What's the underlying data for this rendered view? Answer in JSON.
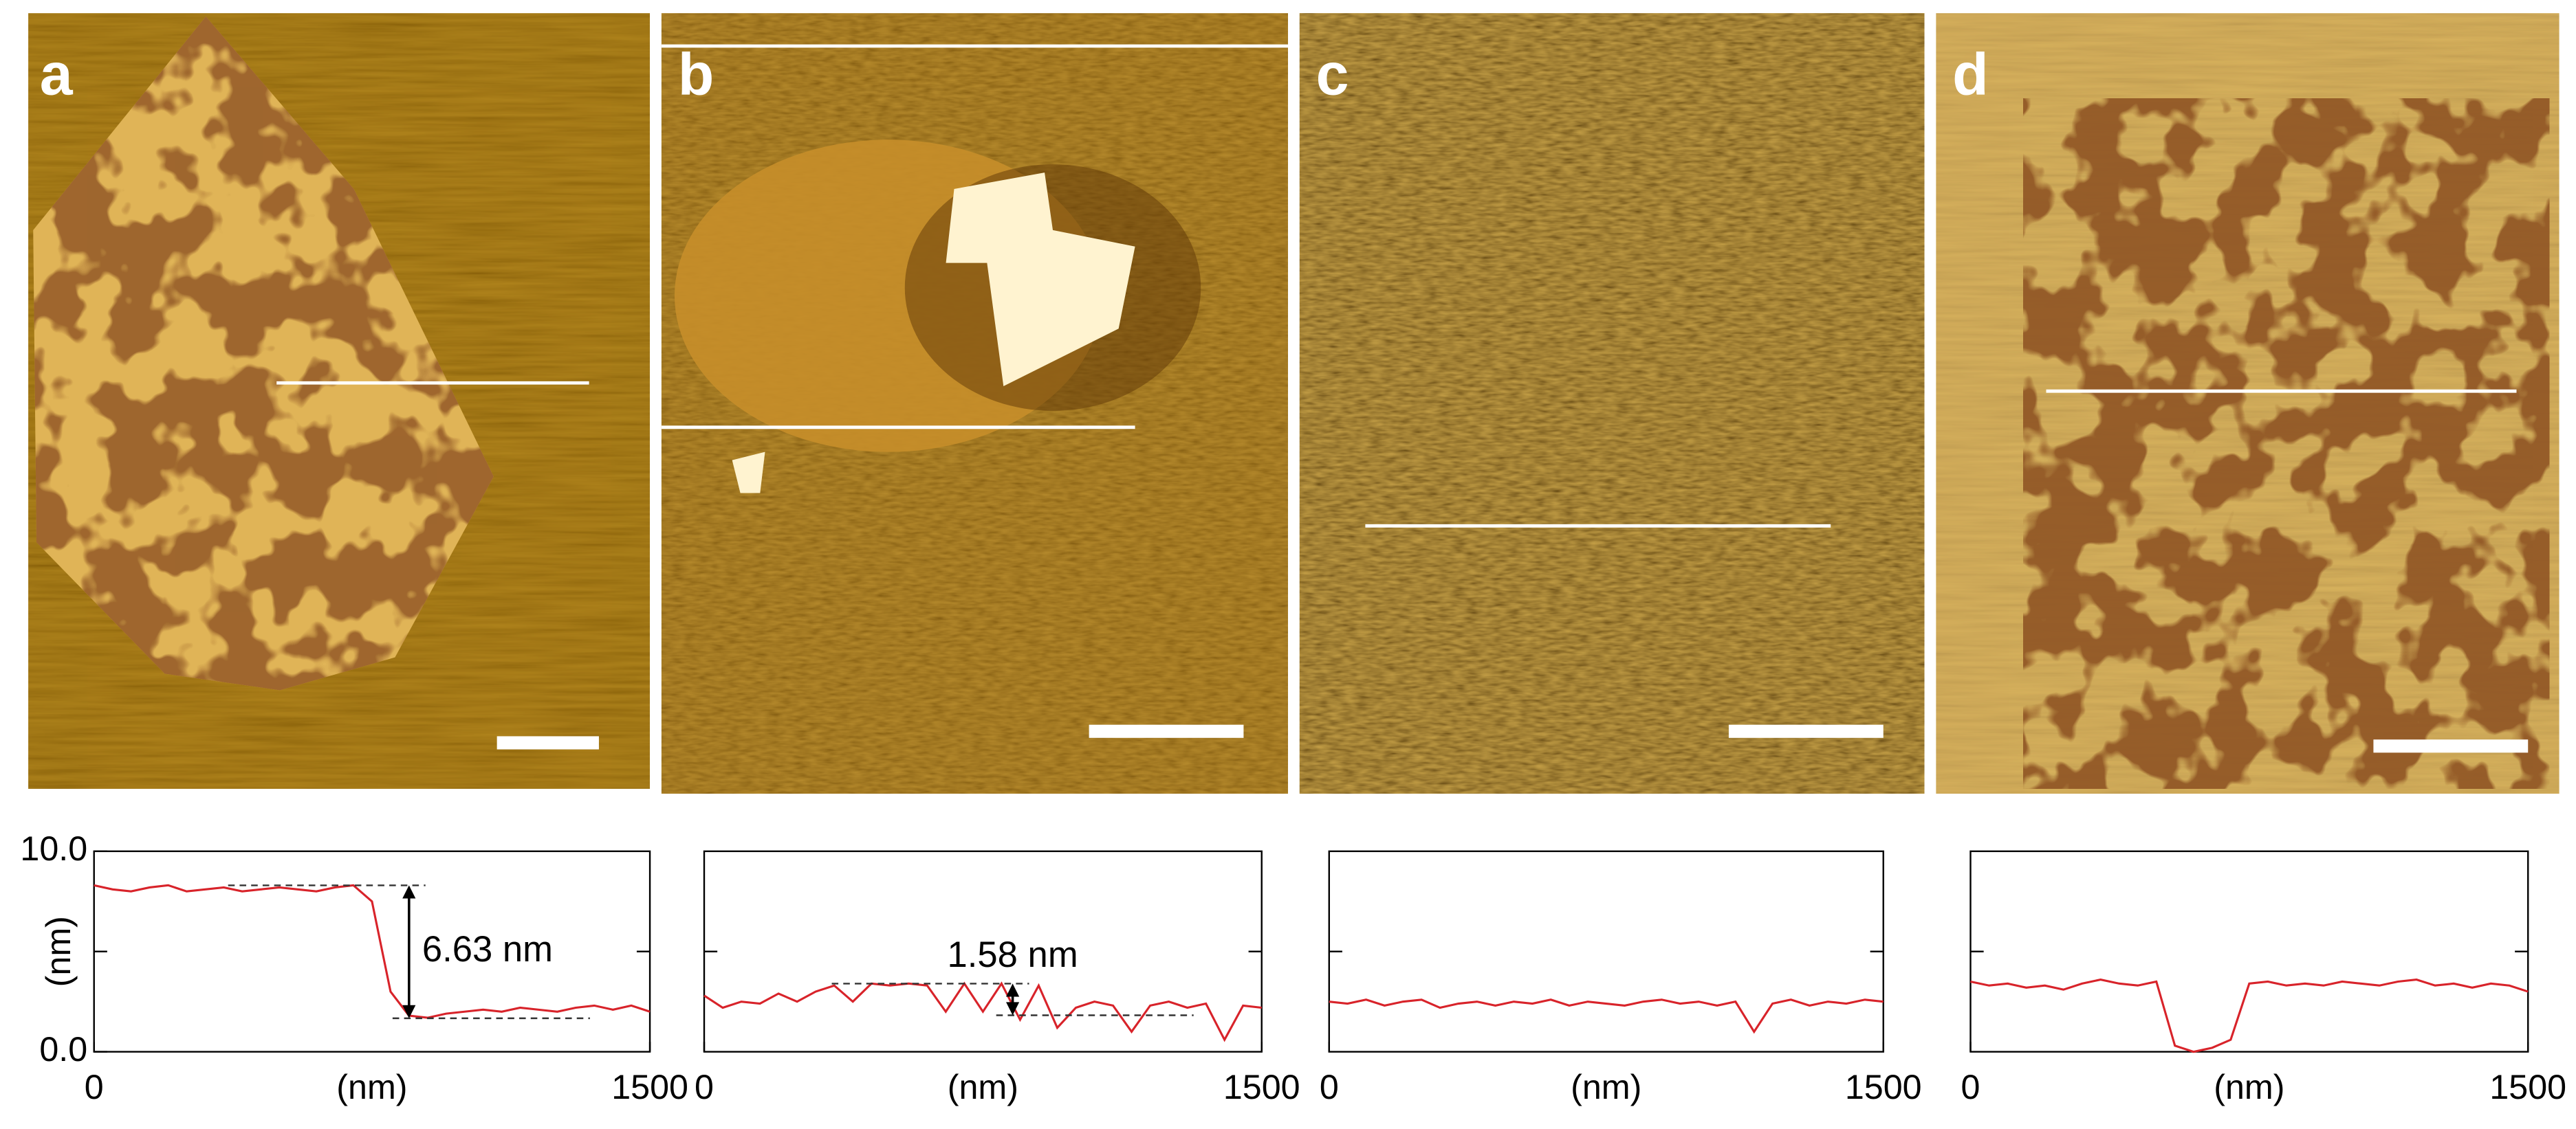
{
  "chart_data": [
    {
      "type": "line",
      "panel": "a",
      "xlabel": "(nm)",
      "ylabel": "(nm)",
      "color": "#d8232a",
      "x": [
        0,
        50,
        100,
        150,
        200,
        250,
        300,
        350,
        400,
        450,
        500,
        550,
        600,
        650,
        700,
        750,
        800,
        850,
        900,
        950,
        1000,
        1050,
        1100,
        1150,
        1200,
        1250,
        1300,
        1350,
        1400,
        1450,
        1500
      ],
      "values": [
        8.3,
        8.1,
        8.0,
        8.2,
        8.3,
        8.0,
        8.1,
        8.2,
        8.0,
        8.1,
        8.2,
        8.1,
        8.0,
        8.2,
        8.3,
        7.5,
        3.0,
        1.8,
        1.7,
        1.9,
        2.0,
        2.1,
        2.0,
        2.2,
        2.1,
        2.0,
        2.2,
        2.3,
        2.1,
        2.3,
        2.0
      ],
      "xlim": [
        0,
        1500
      ],
      "xticks": [
        0,
        1500
      ],
      "ylim": [
        0,
        10
      ],
      "yticks": [
        {
          "value": 0,
          "label": "0.0"
        },
        {
          "value": 10,
          "label": "10.0"
        }
      ],
      "yminorticks": [
        5
      ],
      "annotation": {
        "label": "6.63 nm",
        "x": 850,
        "from": 8.3,
        "to": 1.67
      }
    },
    {
      "type": "line",
      "panel": "b",
      "xlabel": "(nm)",
      "color": "#d8232a",
      "x": [
        0,
        50,
        100,
        150,
        200,
        250,
        300,
        350,
        400,
        450,
        500,
        550,
        600,
        650,
        700,
        750,
        800,
        850,
        900,
        950,
        1000,
        1050,
        1100,
        1150,
        1200,
        1250,
        1300,
        1350,
        1400,
        1450,
        1500
      ],
      "values": [
        2.8,
        2.2,
        2.5,
        2.4,
        2.9,
        2.5,
        3.0,
        3.3,
        2.5,
        3.4,
        3.3,
        3.4,
        3.3,
        2.0,
        3.4,
        2.0,
        3.4,
        1.6,
        3.3,
        1.2,
        2.2,
        2.5,
        2.3,
        1.0,
        2.3,
        2.5,
        2.2,
        2.4,
        0.6,
        2.3,
        2.2
      ],
      "xlim": [
        0,
        1500
      ],
      "xticks": [
        0,
        1500
      ],
      "ylim": [
        0,
        10
      ],
      "yminorticks": [
        5
      ],
      "annotation": {
        "label": "1.58 nm",
        "x": 830,
        "from": 3.4,
        "to": 1.82
      }
    },
    {
      "type": "line",
      "panel": "c",
      "xlabel": "(nm)",
      "color": "#d8232a",
      "x": [
        0,
        50,
        100,
        150,
        200,
        250,
        300,
        350,
        400,
        450,
        500,
        550,
        600,
        650,
        700,
        750,
        800,
        850,
        900,
        950,
        1000,
        1050,
        1100,
        1150,
        1200,
        1250,
        1300,
        1350,
        1400,
        1450,
        1500
      ],
      "values": [
        2.5,
        2.4,
        2.6,
        2.3,
        2.5,
        2.6,
        2.2,
        2.4,
        2.5,
        2.3,
        2.5,
        2.4,
        2.6,
        2.3,
        2.5,
        2.4,
        2.3,
        2.5,
        2.6,
        2.4,
        2.5,
        2.3,
        2.5,
        1.0,
        2.4,
        2.6,
        2.3,
        2.5,
        2.4,
        2.6,
        2.5
      ],
      "xlim": [
        0,
        1500
      ],
      "xticks": [
        0,
        1500
      ],
      "ylim": [
        0,
        10
      ],
      "yminorticks": [
        5
      ]
    },
    {
      "type": "line",
      "panel": "d",
      "xlabel": "(nm)",
      "color": "#d8232a",
      "x": [
        0,
        50,
        100,
        150,
        200,
        250,
        300,
        350,
        400,
        450,
        500,
        550,
        600,
        650,
        700,
        750,
        800,
        850,
        900,
        950,
        1000,
        1050,
        1100,
        1150,
        1200,
        1250,
        1300,
        1350,
        1400,
        1450,
        1500
      ],
      "values": [
        3.5,
        3.3,
        3.4,
        3.2,
        3.3,
        3.1,
        3.4,
        3.6,
        3.4,
        3.3,
        3.5,
        0.3,
        0.0,
        0.2,
        0.6,
        3.4,
        3.5,
        3.3,
        3.4,
        3.3,
        3.5,
        3.4,
        3.3,
        3.5,
        3.6,
        3.3,
        3.4,
        3.2,
        3.4,
        3.3,
        3.0
      ],
      "xlim": [
        0,
        1500
      ],
      "xticks": [
        0,
        1500
      ],
      "ylim": [
        0,
        10
      ],
      "yminorticks": [
        5
      ]
    }
  ]
}
